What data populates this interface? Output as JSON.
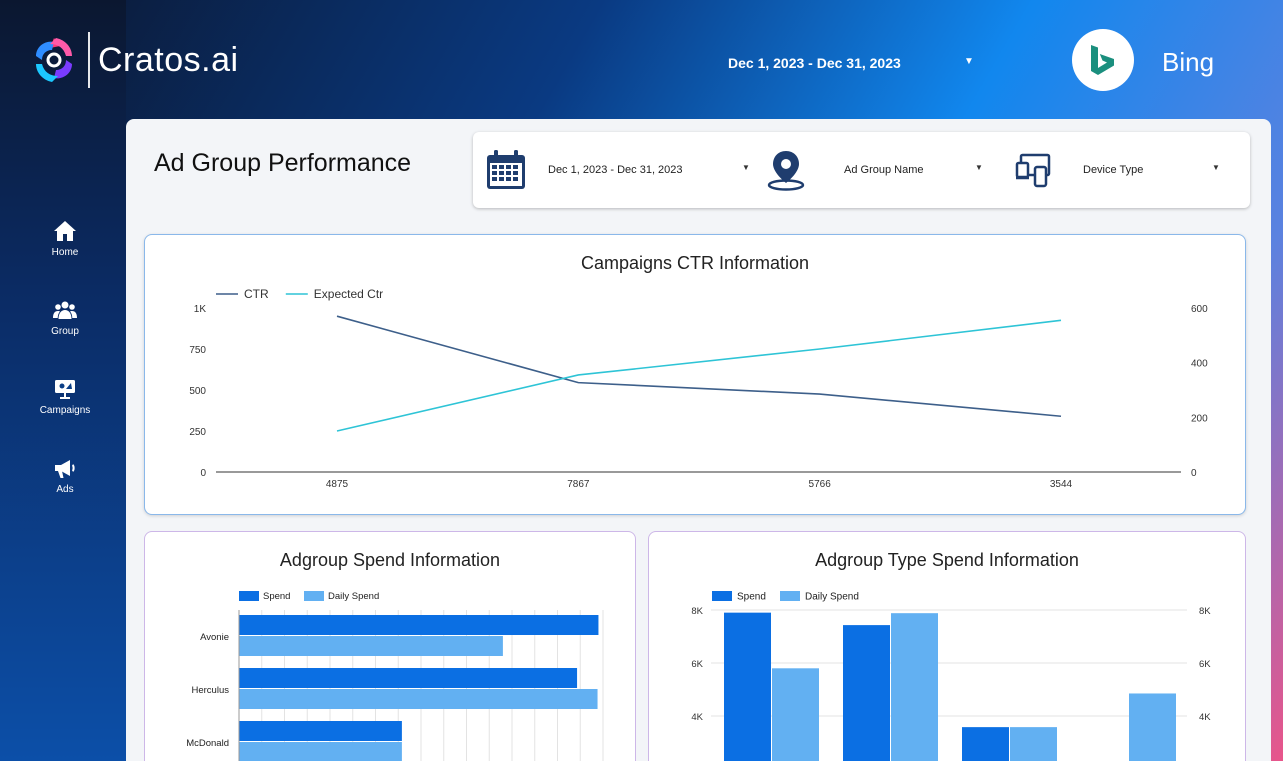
{
  "header": {
    "logo_text": "Cratos.ai",
    "date_range": "Dec 1, 2023 - Dec 31, 2023",
    "platform": "Bing",
    "platform_icon": "bing-logo-icon",
    "colors": {
      "bing": "#1b8f7e"
    }
  },
  "sidebar": {
    "items": [
      {
        "label": "Home",
        "icon": "home-icon"
      },
      {
        "label": "Group",
        "icon": "group-icon"
      },
      {
        "label": "Campaigns",
        "icon": "campaigns-icon"
      },
      {
        "label": "Ads",
        "icon": "megaphone-icon"
      }
    ]
  },
  "page": {
    "title": "Ad Group Performance"
  },
  "filters": {
    "date": {
      "value": "Dec 1, 2023 - Dec 31, 2023",
      "icon": "calendar-icon"
    },
    "ad_group": {
      "value": "Ad Group Name",
      "icon": "location-pin-icon"
    },
    "device": {
      "value": "Device Type",
      "icon": "devices-icon"
    }
  },
  "chart_data": [
    {
      "type": "line",
      "title": "Campaigns CTR Information",
      "categories": [
        "4875",
        "7867",
        "5766",
        "3544"
      ],
      "series": [
        {
          "name": "CTR",
          "values": [
            950,
            545,
            475,
            340
          ],
          "axis": "left",
          "color": "#3d5f8a"
        },
        {
          "name": "Expected Ctr",
          "values": [
            150,
            355,
            450,
            555
          ],
          "axis": "right",
          "color": "#2ec4d6"
        }
      ],
      "y_left": {
        "ticks": [
          "0",
          "250",
          "500",
          "750",
          "1K"
        ],
        "range": [
          0,
          1000
        ]
      },
      "y_right": {
        "ticks": [
          "0",
          "200",
          "400",
          "600"
        ],
        "range": [
          0,
          600
        ]
      },
      "legend": "top-left",
      "grid": false
    },
    {
      "type": "bar",
      "orientation": "horizontal",
      "title": "Adgroup  Spend Information",
      "categories": [
        "Avonie",
        "Herculus",
        "McDonald"
      ],
      "series": [
        {
          "name": "Spend",
          "values": [
            7900,
            7430,
            3580
          ],
          "color": "#0b6fe3"
        },
        {
          "name": "Daily Spend",
          "values": [
            5800,
            7880,
            3580
          ],
          "color": "#62b0f2"
        }
      ],
      "x_range": [
        0,
        8000
      ],
      "legend": "top-left",
      "grid": true
    },
    {
      "type": "bar",
      "title": "Adgroup Type  Spend Information",
      "categories": [
        "",
        "",
        "",
        ""
      ],
      "series": [
        {
          "name": "Spend",
          "values": [
            7900,
            7430,
            3580,
            0
          ],
          "color": "#0b6fe3"
        },
        {
          "name": "Daily Spend",
          "values": [
            5800,
            7880,
            3580,
            4850
          ],
          "color": "#62b0f2"
        }
      ],
      "y_left": {
        "ticks": [
          "4K",
          "6K",
          "8K"
        ]
      },
      "y_right": {
        "ticks": [
          "4K",
          "6K",
          "8K"
        ]
      },
      "ylim": [
        0,
        8000
      ],
      "legend": "top-left",
      "grid": true
    }
  ]
}
